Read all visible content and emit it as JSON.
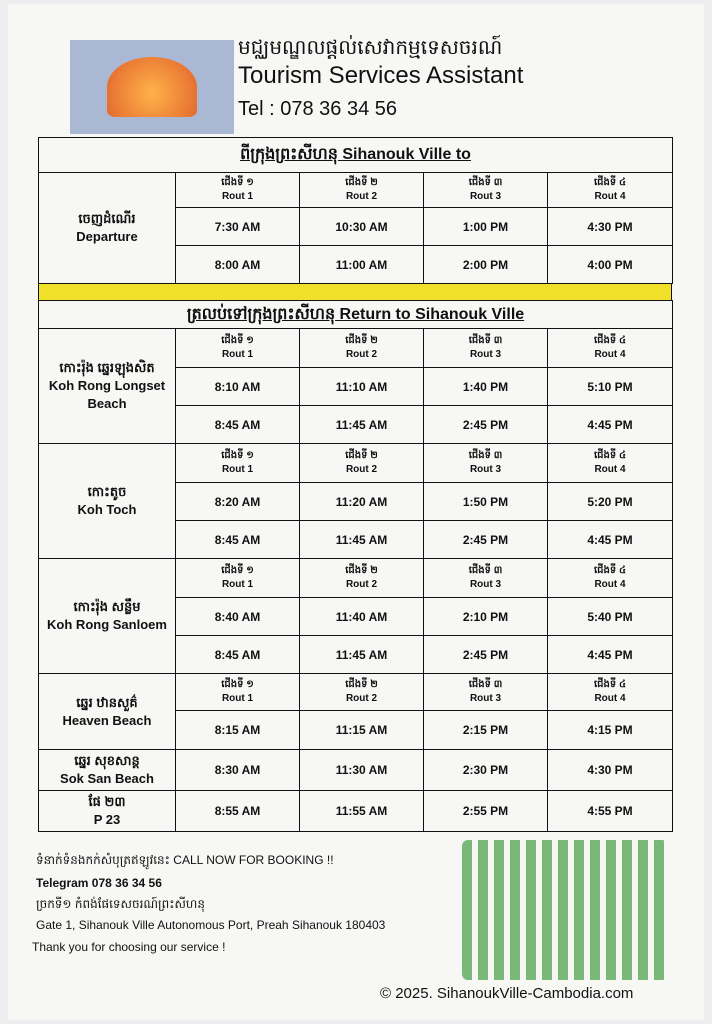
{
  "header": {
    "khmer_name": "មជ្ឈមណ្ឌលផ្តល់សេវាកម្មទេសចរណ៍",
    "title": "Tourism Services Assistant",
    "phone": "Tel : 078 36 34 56",
    "logo_text": "Tourism Services Assistant"
  },
  "outbound": {
    "title_khmer": "ពីក្រុងព្រះសីហនុ",
    "title": "Sihanouk Ville to",
    "label_khmer": "ចេញដំណើរ",
    "label": "Departure",
    "routes": [
      {
        "k": "ជើងទី ១",
        "e": "Rout 1"
      },
      {
        "k": "ជើងទី ២",
        "e": "Rout 2"
      },
      {
        "k": "ជើងទី ៣",
        "e": "Rout 3"
      },
      {
        "k": "ជើងទី ៤",
        "e": "Rout 4"
      }
    ],
    "rows": [
      [
        "7:30 AM",
        "10:30 AM",
        "1:00 PM",
        "4:30 PM"
      ],
      [
        "8:00 AM",
        "11:00 AM",
        "2:00 PM",
        "4:00 PM"
      ]
    ]
  },
  "return": {
    "title_khmer": "ត្រលប់ទៅក្រុងព្រះសីហនុ",
    "title": "Return to Sihanouk Ville",
    "routes": [
      {
        "k": "ជើងទី ១",
        "e": "Rout 1"
      },
      {
        "k": "ជើងទី ២",
        "e": "Rout 2"
      },
      {
        "k": "ជើងទី ៣",
        "e": "Rout 3"
      },
      {
        "k": "ជើងទី ៤",
        "e": "Rout 4"
      }
    ],
    "groups": [
      {
        "k": "កោះរ៉ុង ឆ្នេរឡុងសិត",
        "e": "Koh Rong Longset Beach",
        "rows": [
          [
            "8:10 AM",
            "11:10 AM",
            "1:40 PM",
            "5:10 PM"
          ],
          [
            "8:45 AM",
            "11:45 AM",
            "2:45 PM",
            "4:45 PM"
          ]
        ]
      },
      {
        "k": "កោះតូច",
        "e": "Koh Toch",
        "rows": [
          [
            "8:20 AM",
            "11:20 AM",
            "1:50 PM",
            "5:20 PM"
          ],
          [
            "8:45 AM",
            "11:45 AM",
            "2:45 PM",
            "4:45 PM"
          ]
        ]
      },
      {
        "k": "កោះរ៉ុង សន្លឹម",
        "e": "Koh Rong Sanloem",
        "rows": [
          [
            "8:40 AM",
            "11:40 AM",
            "2:10 PM",
            "5:40 PM"
          ],
          [
            "8:45 AM",
            "11:45 AM",
            "2:45 PM",
            "4:45 PM"
          ]
        ]
      }
    ],
    "beaches": [
      {
        "k": "ឆ្នេរ ឋានសួគ៌",
        "e": "Heaven Beach",
        "row": [
          "8:15 AM",
          "11:15 AM",
          "2:15 PM",
          "4:15 PM"
        ]
      },
      {
        "k": "ឆ្នេរ សុខសាន្ត",
        "e": "Sok San Beach",
        "row": [
          "8:30 AM",
          "11:30 AM",
          "2:30 PM",
          "4:30 PM"
        ]
      },
      {
        "k": "ផែ ២៣",
        "e": "P 23",
        "row": [
          "8:55 AM",
          "11:55 AM",
          "2:55 PM",
          "4:55 PM"
        ]
      }
    ]
  },
  "footer": {
    "call_khmer": "ទំនាក់ទំនងកក់សំបុត្រឥឡូវនេះ",
    "call": "CALL NOW FOR BOOKING !!",
    "telegram": "Telegram 078 36 34 56",
    "address_khmer": "ច្រកទី១ កំពង់ផែទេសចរណ៍ព្រះសីហនុ",
    "address": "Gate 1, Sihanouk Ville Autonomous Port, Preah Sihanouk 180403",
    "thanks": "Thank you for choosing our service !",
    "copyright": "© 2025. SihanoukVille-Cambodia.com"
  },
  "colors": {
    "highlight": "#f2e12a",
    "qr": "#5aaa5a"
  }
}
